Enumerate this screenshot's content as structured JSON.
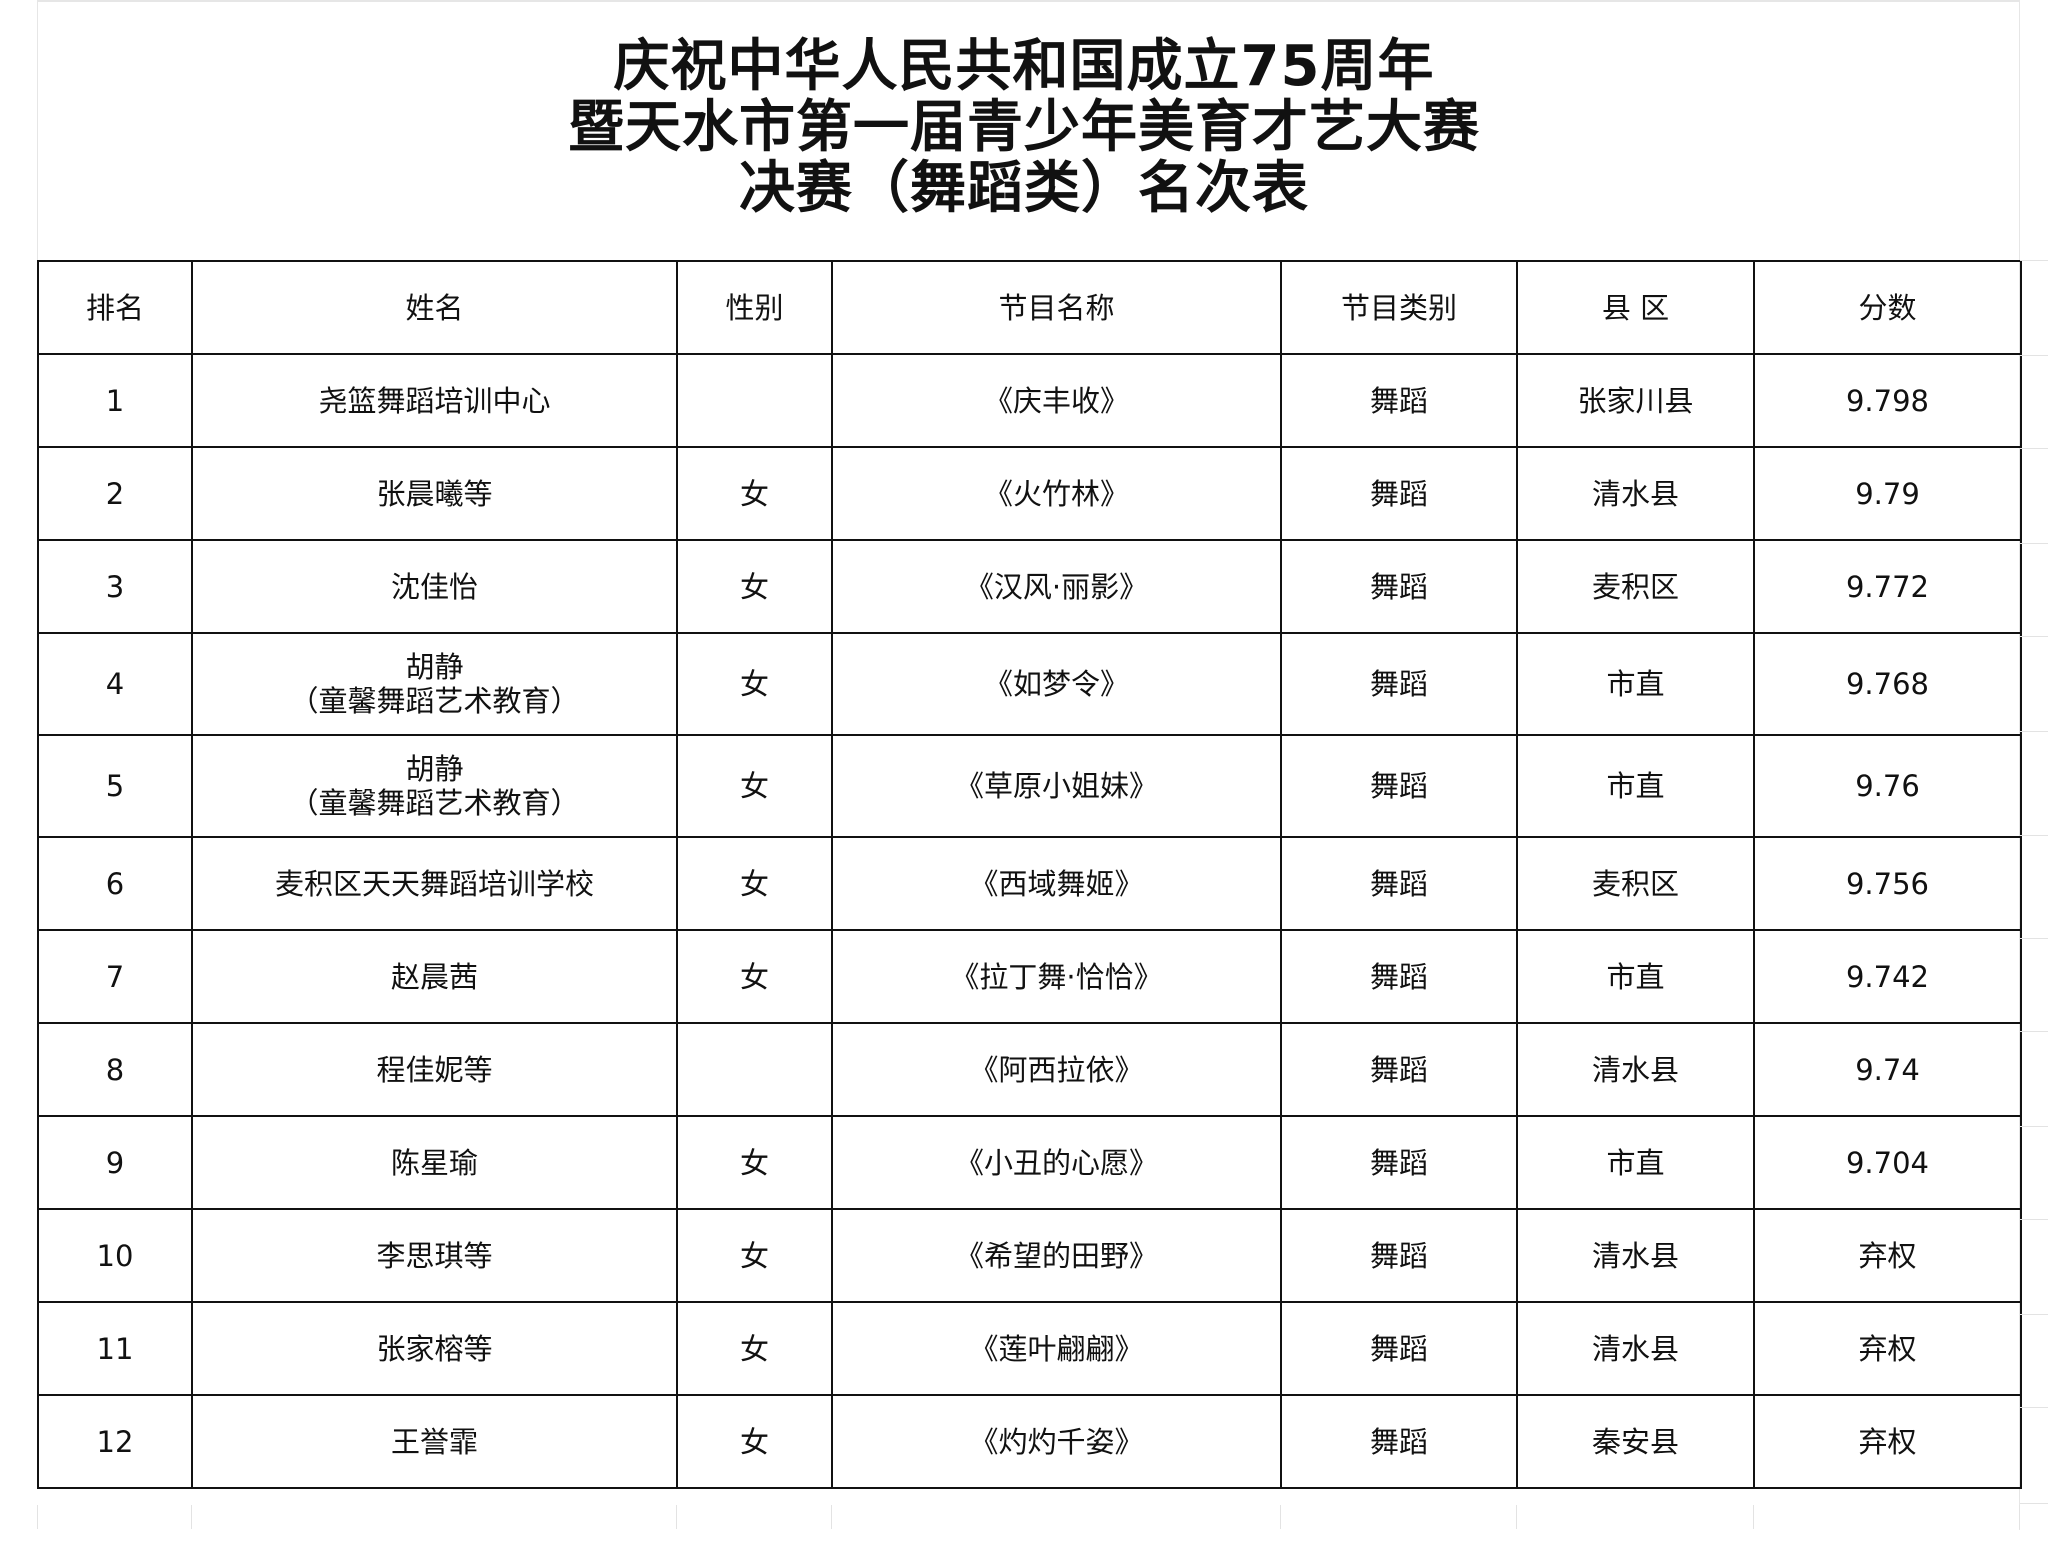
{
  "title": {
    "lines": [
      "庆祝中华人民共和国成立75周年",
      "暨天水市第一届青少年美育才艺大赛",
      "决赛（舞蹈类）名次表"
    ]
  },
  "table": {
    "headers": [
      "排名",
      "姓名",
      "性别",
      "节目名称",
      "节目类别",
      "县 区",
      "分数"
    ],
    "rows": [
      [
        "1",
        "尧篮舞蹈培训中心",
        "",
        "《庆丰收》",
        "舞蹈",
        "张家川县",
        "9.798"
      ],
      [
        "2",
        "张晨曦等",
        "女",
        "《火竹林》",
        "舞蹈",
        "清水县",
        "9.79"
      ],
      [
        "3",
        "沈佳怡",
        "女",
        "《汉风·丽影》",
        "舞蹈",
        "麦积区",
        "9.772"
      ],
      [
        "4",
        "胡静\n（童馨舞蹈艺术教育）",
        "女",
        "《如梦令》",
        "舞蹈",
        "市直",
        "9.768"
      ],
      [
        "5",
        "胡静\n（童馨舞蹈艺术教育）",
        "女",
        "《草原小姐妹》",
        "舞蹈",
        "市直",
        "9.76"
      ],
      [
        "6",
        "麦积区天天舞蹈培训学校",
        "女",
        "《西域舞姬》",
        "舞蹈",
        "麦积区",
        "9.756"
      ],
      [
        "7",
        "赵晨茜",
        "女",
        "《拉丁舞·恰恰》",
        "舞蹈",
        "市直",
        "9.742"
      ],
      [
        "8",
        "程佳妮等",
        "",
        "《阿西拉依》",
        "舞蹈",
        "清水县",
        "9.74"
      ],
      [
        "9",
        "陈星瑜",
        "女",
        "《小丑的心愿》",
        "舞蹈",
        "市直",
        "9.704"
      ],
      [
        "10",
        "李思琪等",
        "女",
        "《希望的田野》",
        "舞蹈",
        "清水县",
        "弃权"
      ],
      [
        "11",
        "张家榕等",
        "女",
        "《莲叶翩翩》",
        "舞蹈",
        "清水县",
        "弃权"
      ],
      [
        "12",
        "王誉霏",
        "女",
        "《灼灼千姿》",
        "舞蹈",
        "秦安县",
        "弃权"
      ]
    ]
  }
}
